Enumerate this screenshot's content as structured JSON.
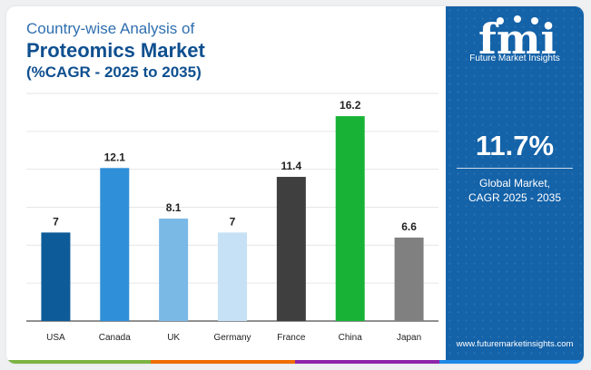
{
  "title": {
    "line1": "Country-wise Analysis of",
    "line2": "Proteomics Market",
    "line3": "(%CAGR - 2025 to 2035)"
  },
  "chart_data": {
    "type": "bar",
    "categories": [
      "USA",
      "Canada",
      "UK",
      "Germany",
      "France",
      "China",
      "Japan"
    ],
    "values": [
      7,
      12.1,
      8.1,
      7,
      11.4,
      16.2,
      6.6
    ],
    "value_labels": [
      "7",
      "12.1",
      "8.1",
      "7",
      "11.4",
      "16.2",
      "6.6"
    ],
    "bar_colors": [
      "#0d5b98",
      "#2f8fd8",
      "#7ab8e6",
      "#c6e1f5",
      "#3f3f3f",
      "#18b336",
      "#808080"
    ],
    "ylim": [
      0,
      18
    ],
    "grid": true,
    "title": "",
    "xlabel": "",
    "ylabel": ""
  },
  "side_panel": {
    "logo_text": "fmi",
    "logo_name": "Future Market Insights",
    "cagr_value": "11.7%",
    "caption_line1": "Global Market,",
    "caption_line2": "CAGR 2025 - 2035",
    "website": "www.futuremarketinsights.com",
    "background": "#1462a8"
  },
  "footer_colors": [
    "#7cb342",
    "#ef6c00",
    "#8e24aa",
    "#1e88e5"
  ]
}
